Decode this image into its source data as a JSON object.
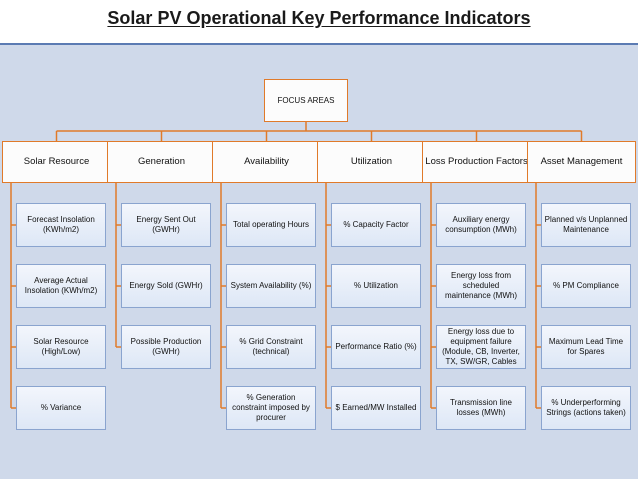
{
  "title": "Solar PV Operational Key Performance Indicators",
  "root": "FOCUS AREAS",
  "colors": {
    "connector": "#e07a2a",
    "panel": "#cfd9ea",
    "box_border": "#8aa4cf"
  },
  "categories": [
    {
      "label": "Solar Resource",
      "items": [
        "Forecast Insolation (KWh/m2)",
        "Average Actual Insolation (KWh/m2)",
        "Solar Resource (High/Low)",
        "% Variance"
      ]
    },
    {
      "label": "Generation",
      "items": [
        "Energy Sent Out (GWHr)",
        "Energy Sold (GWHr)",
        "Possible Production (GWHr)"
      ]
    },
    {
      "label": "Availability",
      "items": [
        "Total operating Hours",
        "System Availability (%)",
        "% Grid Constraint (technical)",
        "% Generation constraint imposed by procurer"
      ]
    },
    {
      "label": "Utilization",
      "items": [
        "% Capacity Factor",
        "% Utilization",
        "Performance Ratio (%)",
        "$ Earned/MW Installed"
      ]
    },
    {
      "label": "Loss Production Factors",
      "items": [
        "Auxiliary energy consumption (MWh)",
        "Energy loss from scheduled maintenance (MWh)",
        "Energy loss due to equipment failure (Module, CB, Inverter, TX, SW/GR, Cables",
        "Transmission line losses (MWh)"
      ]
    },
    {
      "label": "Asset Management",
      "items": [
        "Planned v/s Unplanned Maintenance",
        "% PM Compliance",
        "Maximum Lead Time for Spares",
        "% Underperforming Strings (actions taken)"
      ]
    }
  ]
}
